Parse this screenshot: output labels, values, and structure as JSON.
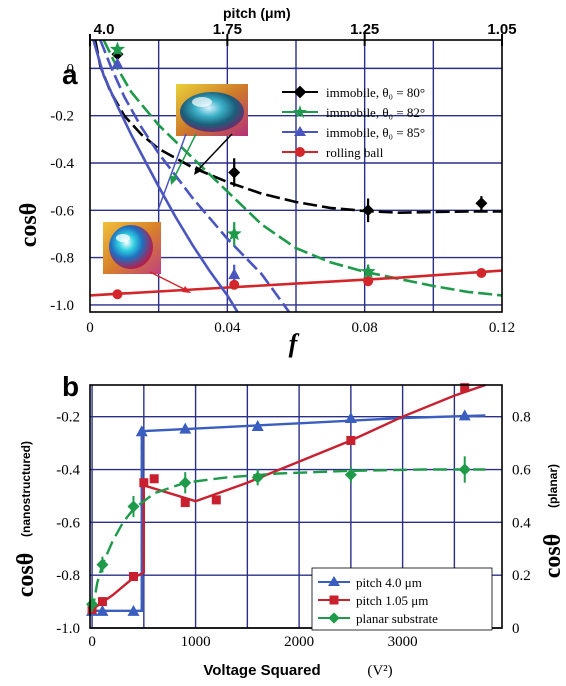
{
  "chart_data": [
    {
      "type": "line",
      "panel_label": "a",
      "xlabel": "f",
      "ylabel": "cosθ",
      "top_axis_label": "pitch (μm)",
      "top_ticks": [
        {
          "label": "4.0",
          "f": 0.0
        },
        {
          "label": "1.75",
          "f": 0.04
        },
        {
          "label": "1.25",
          "f": 0.08
        },
        {
          "label": "1.05",
          "f": 0.12
        }
      ],
      "xlim": [
        0,
        0.12
      ],
      "ylim": [
        -1.03,
        0.12
      ],
      "x_ticks": [
        0,
        0.04,
        0.08,
        0.12
      ],
      "x_tick_labels": [
        "0",
        "0.04",
        "0.08",
        "0.12"
      ],
      "y_ticks": [
        0,
        -0.2,
        -0.4,
        -0.6,
        -0.8,
        -1.0
      ],
      "y_tick_labels": [
        "0",
        "-0.2",
        "-0.4",
        "-0.6",
        "-0.8",
        "-1.0"
      ],
      "grid": true,
      "legend_position": "top-right",
      "series": [
        {
          "name": "immobile, θ₀ = 80°",
          "color": "#000000",
          "marker": "diamond",
          "points": [
            [
              0.008,
              0.06
            ],
            [
              0.042,
              -0.44
            ],
            [
              0.081,
              -0.6
            ],
            [
              0.114,
              -0.57
            ]
          ],
          "errors": [
            0.02,
            0.06,
            0.05,
            0.03
          ],
          "curve": [
            [
              0.0015,
              0.12
            ],
            [
              0.003,
              0.01
            ],
            [
              0.006,
              -0.1
            ],
            [
              0.01,
              -0.2
            ],
            [
              0.015,
              -0.28
            ],
            [
              0.02,
              -0.34
            ],
            [
              0.03,
              -0.42
            ],
            [
              0.04,
              -0.48
            ],
            [
              0.05,
              -0.53
            ],
            [
              0.06,
              -0.565
            ],
            [
              0.07,
              -0.59
            ],
            [
              0.08,
              -0.603
            ],
            [
              0.09,
              -0.61
            ],
            [
              0.1,
              -0.607
            ],
            [
              0.11,
              -0.605
            ],
            [
              0.12,
              -0.605
            ]
          ]
        },
        {
          "name": "immobile, θ₀ = 82°",
          "color": "#1e9a4a",
          "marker": "star",
          "points": [
            [
              0.008,
              0.08
            ],
            [
              0.042,
              -0.7
            ],
            [
              0.081,
              -0.86
            ]
          ],
          "errors": [
            0.02,
            0.05,
            0.03
          ],
          "curve": [
            [
              0.004,
              0.12
            ],
            [
              0.008,
              0.0
            ],
            [
              0.012,
              -0.1
            ],
            [
              0.02,
              -0.24
            ],
            [
              0.03,
              -0.38
            ],
            [
              0.04,
              -0.52
            ],
            [
              0.05,
              -0.66
            ],
            [
              0.06,
              -0.76
            ],
            [
              0.07,
              -0.82
            ],
            [
              0.08,
              -0.86
            ],
            [
              0.09,
              -0.89
            ],
            [
              0.1,
              -0.92
            ],
            [
              0.11,
              -0.945
            ],
            [
              0.12,
              -0.96
            ]
          ]
        },
        {
          "name": "immobile, θ₀ = 85°",
          "color": "#4a55c0",
          "marker": "triangle",
          "points": [
            [
              0.008,
              0.02
            ],
            [
              0.042,
              -0.87
            ]
          ],
          "errors": [
            0.02,
            0.04
          ],
          "curve": [
            [
              0.003,
              0.12
            ],
            [
              0.006,
              0.01
            ],
            [
              0.01,
              -0.12
            ],
            [
              0.015,
              -0.25
            ],
            [
              0.02,
              -0.36
            ],
            [
              0.03,
              -0.55
            ],
            [
              0.04,
              -0.72
            ],
            [
              0.05,
              -0.87
            ],
            [
              0.058,
              -1.03
            ]
          ]
        },
        {
          "name": "rolling ball",
          "color": "#d3262b",
          "marker": "circle",
          "points": [
            [
              0.008,
              -0.955
            ],
            [
              0.042,
              -0.915
            ],
            [
              0.081,
              -0.9
            ],
            [
              0.114,
              -0.865
            ]
          ],
          "errors": [
            0,
            0,
            0,
            0
          ],
          "curve": [
            [
              0.0,
              -0.96
            ],
            [
              0.03,
              -0.935
            ],
            [
              0.06,
              -0.91
            ],
            [
              0.09,
              -0.885
            ],
            [
              0.12,
              -0.855
            ]
          ]
        }
      ],
      "extra_curve": {
        "color": "#4a55c0",
        "curve": [
          [
            0.001,
            0.12
          ],
          [
            0.004,
            -0.03
          ],
          [
            0.008,
            -0.16
          ],
          [
            0.012,
            -0.28
          ],
          [
            0.016,
            -0.39
          ],
          [
            0.02,
            -0.5
          ],
          [
            0.025,
            -0.63
          ],
          [
            0.03,
            -0.75
          ],
          [
            0.035,
            -0.86
          ],
          [
            0.04,
            -0.96
          ],
          [
            0.043,
            -1.03
          ]
        ]
      }
    },
    {
      "type": "line",
      "panel_label": "b",
      "xlabel": "Voltage Squared",
      "xunit": "(V²)",
      "ylabel": "cosθ",
      "ylabel_note": "(nanostructured)",
      "y2label": "cosθ",
      "y2label_note": "(planar)",
      "xlim": [
        -20,
        3960
      ],
      "ylim": [
        -1.0,
        -0.08
      ],
      "y2lim": [
        0.0,
        0.92
      ],
      "x_ticks": [
        0,
        1000,
        2000,
        3000
      ],
      "x_tick_labels": [
        "0",
        "1000",
        "2000",
        "3000"
      ],
      "x_grid": [
        0,
        500,
        1000,
        1500,
        2000,
        2500,
        3000,
        3500
      ],
      "y_ticks": [
        -0.2,
        -0.4,
        -0.6,
        -0.8,
        -1.0
      ],
      "y_tick_labels": [
        "-0.2",
        "-0.4",
        "-0.6",
        "-0.8",
        "-1.0"
      ],
      "y2_ticks": [
        0.8,
        0.6,
        0.4,
        0.2,
        0
      ],
      "y2_tick_labels": [
        "0.8",
        "0.6",
        "0.4",
        "0.2",
        "0"
      ],
      "grid": true,
      "legend_position": "bottom-right",
      "series": [
        {
          "name": "pitch  4.0  μm",
          "color": "#3a5ec0",
          "marker": "triangle",
          "points": [
            [
              0,
              -0.935
            ],
            [
              100,
              -0.935
            ],
            [
              400,
              -0.935
            ],
            [
              480,
              -0.255
            ],
            [
              900,
              -0.245
            ],
            [
              1600,
              -0.235
            ],
            [
              2500,
              -0.205
            ],
            [
              3600,
              -0.195
            ]
          ],
          "curve": [
            [
              0,
              -0.935
            ],
            [
              480,
              -0.935
            ],
            [
              480,
              -0.255
            ],
            [
              1000,
              -0.245
            ],
            [
              2000,
              -0.225
            ],
            [
              3000,
              -0.205
            ],
            [
              3800,
              -0.195
            ]
          ],
          "step_dashed": [
            [
              480,
              -0.935
            ],
            [
              480,
              -0.255
            ]
          ]
        },
        {
          "name": "pitch 1.05 μm",
          "color": "#c8202f",
          "marker": "square",
          "points": [
            [
              0,
              -0.93
            ],
            [
              100,
              -0.9
            ],
            [
              400,
              -0.805
            ],
            [
              500,
              -0.45
            ],
            [
              600,
              -0.435
            ],
            [
              900,
              -0.525
            ],
            [
              1200,
              -0.515
            ],
            [
              2500,
              -0.29
            ],
            [
              3600,
              -0.09
            ]
          ],
          "curve": [
            [
              0,
              -0.93
            ],
            [
              200,
              -0.875
            ],
            [
              400,
              -0.81
            ],
            [
              500,
              -0.79
            ],
            [
              500,
              -0.46
            ],
            [
              1000,
              -0.52
            ],
            [
              1500,
              -0.45
            ],
            [
              2000,
              -0.37
            ],
            [
              2500,
              -0.29
            ],
            [
              3000,
              -0.2
            ],
            [
              3500,
              -0.12
            ],
            [
              3800,
              -0.08
            ]
          ]
        },
        {
          "name": "planar substrate",
          "color": "#1e9a4a",
          "marker": "diamond",
          "axis": "right",
          "points": [
            [
              0,
              0.09
            ],
            [
              100,
              0.24
            ],
            [
              400,
              0.46
            ],
            [
              900,
              0.55
            ],
            [
              1600,
              0.57
            ],
            [
              2500,
              0.58
            ],
            [
              3600,
              0.6
            ]
          ],
          "errors": [
            0.03,
            0.03,
            0.04,
            0.04,
            0.03,
            0.03,
            0.05
          ],
          "curve": [
            [
              0,
              0.06
            ],
            [
              50,
              0.17
            ],
            [
              100,
              0.24
            ],
            [
              200,
              0.33
            ],
            [
              300,
              0.4
            ],
            [
              400,
              0.45
            ],
            [
              600,
              0.51
            ],
            [
              900,
              0.55
            ],
            [
              1300,
              0.57
            ],
            [
              1800,
              0.585
            ],
            [
              2500,
              0.595
            ],
            [
              3200,
              0.6
            ],
            [
              3800,
              0.6
            ]
          ]
        }
      ]
    }
  ]
}
